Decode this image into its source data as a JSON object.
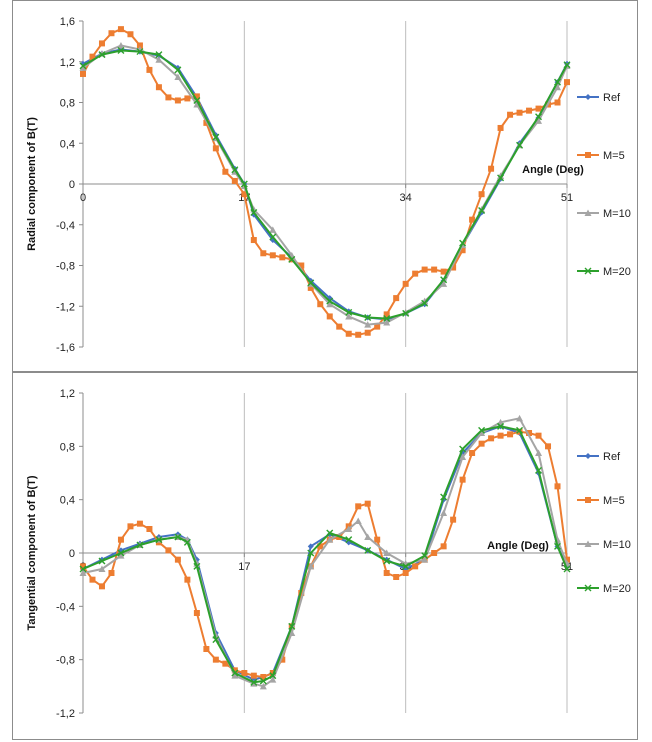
{
  "chart_data": [
    {
      "type": "line",
      "title": "",
      "xlabel": "Angle (Deg)",
      "ylabel": "Radial component of B(T)",
      "xlim": [
        0,
        51
      ],
      "ylim": [
        -1.6,
        1.6
      ],
      "x_ticks": [
        "0",
        "17",
        "34",
        "51"
      ],
      "y_ticks": [
        "1,6",
        "1,2",
        "0,8",
        "0,4",
        "0",
        "-0,4",
        "-0,8",
        "-1,2",
        "-1,6"
      ],
      "grid": "vertical",
      "legend_position": "right",
      "series": [
        {
          "name": "Ref",
          "color": "#4472c4",
          "marker": "diamond",
          "x": [
            0,
            2,
            4,
            6,
            8,
            10,
            12,
            14,
            16,
            17,
            18,
            20,
            22,
            24,
            26,
            28,
            30,
            32,
            34,
            36,
            38,
            40,
            42,
            44,
            46,
            48,
            50,
            51
          ],
          "y": [
            1.18,
            1.28,
            1.32,
            1.3,
            1.26,
            1.14,
            0.85,
            0.48,
            0.15,
            0.0,
            -0.3,
            -0.55,
            -0.72,
            -0.95,
            -1.12,
            -1.25,
            -1.31,
            -1.33,
            -1.27,
            -1.18,
            -0.95,
            -0.6,
            -0.28,
            0.05,
            0.4,
            0.65,
            1.0,
            1.18
          ]
        },
        {
          "name": "M=5",
          "color": "#ed7d31",
          "marker": "square",
          "x": [
            0,
            1,
            2,
            3,
            4,
            5,
            6,
            7,
            8,
            9,
            10,
            11,
            12,
            13,
            14,
            15,
            16,
            17,
            18,
            19,
            20,
            21,
            22,
            23,
            24,
            25,
            26,
            27,
            28,
            29,
            30,
            31,
            32,
            33,
            34,
            35,
            36,
            37,
            38,
            39,
            40,
            41,
            42,
            43,
            44,
            45,
            46,
            47,
            48,
            49,
            50,
            51
          ],
          "y": [
            1.08,
            1.25,
            1.38,
            1.48,
            1.52,
            1.47,
            1.36,
            1.12,
            0.95,
            0.85,
            0.82,
            0.84,
            0.86,
            0.6,
            0.35,
            0.12,
            0.03,
            -0.1,
            -0.55,
            -0.68,
            -0.7,
            -0.72,
            -0.74,
            -0.8,
            -1.02,
            -1.18,
            -1.3,
            -1.4,
            -1.47,
            -1.48,
            -1.46,
            -1.4,
            -1.28,
            -1.12,
            -0.98,
            -0.88,
            -0.84,
            -0.84,
            -0.86,
            -0.82,
            -0.65,
            -0.35,
            -0.1,
            0.15,
            0.55,
            0.68,
            0.7,
            0.72,
            0.74,
            0.78,
            0.8,
            1.0
          ]
        },
        {
          "name": "M=10",
          "color": "#a5a5a5",
          "marker": "triangle",
          "x": [
            0,
            2,
            4,
            6,
            8,
            10,
            12,
            14,
            16,
            17,
            18,
            20,
            22,
            24,
            26,
            28,
            30,
            32,
            34,
            36,
            38,
            40,
            42,
            44,
            46,
            48,
            50,
            51
          ],
          "y": [
            1.14,
            1.28,
            1.36,
            1.32,
            1.22,
            1.05,
            0.78,
            0.45,
            0.12,
            -0.02,
            -0.25,
            -0.45,
            -0.7,
            -0.98,
            -1.18,
            -1.3,
            -1.38,
            -1.36,
            -1.26,
            -1.15,
            -0.98,
            -0.6,
            -0.25,
            0.08,
            0.38,
            0.62,
            0.95,
            1.16
          ]
        },
        {
          "name": "M=20",
          "color": "#2ca02c",
          "marker": "x",
          "x": [
            0,
            2,
            4,
            6,
            8,
            10,
            12,
            14,
            16,
            17,
            18,
            20,
            22,
            24,
            26,
            28,
            30,
            32,
            34,
            36,
            38,
            40,
            42,
            44,
            46,
            48,
            50,
            51
          ],
          "y": [
            1.16,
            1.27,
            1.31,
            1.3,
            1.27,
            1.12,
            0.82,
            0.46,
            0.14,
            0.0,
            -0.28,
            -0.52,
            -0.74,
            -0.97,
            -1.15,
            -1.26,
            -1.31,
            -1.32,
            -1.27,
            -1.17,
            -0.94,
            -0.58,
            -0.26,
            0.06,
            0.38,
            0.66,
            1.0,
            1.17
          ]
        }
      ]
    },
    {
      "type": "line",
      "title": "",
      "xlabel": "Angle (Deg)",
      "ylabel": "Tangential component of B(T)",
      "xlim": [
        0,
        51
      ],
      "ylim": [
        -1.2,
        1.2
      ],
      "x_ticks": [
        "0",
        "17",
        "34",
        "51"
      ],
      "y_ticks": [
        "1,2",
        "0,8",
        "0,4",
        "0",
        "-0,4",
        "-0,8",
        "-1,2"
      ],
      "grid": "vertical",
      "legend_position": "right",
      "series": [
        {
          "name": "Ref",
          "color": "#4472c4",
          "marker": "diamond",
          "x": [
            0,
            2,
            4,
            6,
            8,
            10,
            11,
            12,
            14,
            16,
            18,
            19,
            20,
            22,
            24,
            26,
            28,
            30,
            32,
            34,
            36,
            38,
            40,
            42,
            44,
            46,
            48,
            50,
            51
          ],
          "y": [
            -0.12,
            -0.05,
            0.02,
            0.07,
            0.12,
            0.14,
            0.1,
            -0.05,
            -0.6,
            -0.88,
            -0.95,
            -0.93,
            -0.9,
            -0.55,
            0.05,
            0.14,
            0.08,
            0.02,
            -0.05,
            -0.12,
            -0.05,
            0.4,
            0.75,
            0.9,
            0.95,
            0.9,
            0.6,
            0.05,
            -0.1
          ]
        },
        {
          "name": "M=5",
          "color": "#ed7d31",
          "marker": "square",
          "x": [
            0,
            1,
            2,
            3,
            4,
            5,
            6,
            7,
            8,
            9,
            10,
            11,
            12,
            13,
            14,
            15,
            16,
            17,
            18,
            19,
            20,
            21,
            22,
            23,
            24,
            25,
            26,
            27,
            28,
            29,
            30,
            31,
            32,
            33,
            34,
            35,
            36,
            37,
            38,
            39,
            40,
            41,
            42,
            43,
            44,
            45,
            46,
            47,
            48,
            49,
            50,
            51
          ],
          "y": [
            -0.1,
            -0.2,
            -0.25,
            -0.15,
            0.1,
            0.2,
            0.22,
            0.18,
            0.08,
            0.02,
            -0.05,
            -0.2,
            -0.45,
            -0.72,
            -0.8,
            -0.83,
            -0.88,
            -0.9,
            -0.92,
            -0.93,
            -0.9,
            -0.8,
            -0.55,
            -0.3,
            -0.1,
            0.05,
            0.1,
            0.12,
            0.2,
            0.35,
            0.37,
            0.1,
            -0.15,
            -0.18,
            -0.15,
            -0.1,
            -0.05,
            0.0,
            0.05,
            0.25,
            0.55,
            0.75,
            0.82,
            0.86,
            0.88,
            0.89,
            0.91,
            0.9,
            0.88,
            0.8,
            0.5,
            -0.05
          ]
        },
        {
          "name": "M=10",
          "color": "#a5a5a5",
          "marker": "triangle",
          "x": [
            0,
            2,
            4,
            6,
            8,
            10,
            11,
            12,
            14,
            16,
            18,
            19,
            20,
            22,
            24,
            26,
            28,
            29,
            30,
            32,
            34,
            36,
            38,
            40,
            42,
            44,
            46,
            48,
            50,
            51
          ],
          "y": [
            -0.15,
            -0.12,
            -0.02,
            0.06,
            0.1,
            0.12,
            0.1,
            -0.08,
            -0.62,
            -0.92,
            -0.98,
            -1.0,
            -0.95,
            -0.6,
            -0.1,
            0.1,
            0.18,
            0.24,
            0.12,
            0.0,
            -0.08,
            -0.05,
            0.3,
            0.72,
            0.9,
            0.98,
            1.01,
            0.75,
            0.1,
            -0.08
          ]
        },
        {
          "name": "M=20",
          "color": "#2ca02c",
          "marker": "x",
          "x": [
            0,
            2,
            4,
            6,
            8,
            10,
            11,
            12,
            14,
            16,
            18,
            19,
            20,
            22,
            24,
            26,
            28,
            30,
            32,
            34,
            36,
            38,
            40,
            42,
            44,
            46,
            48,
            50,
            51
          ],
          "y": [
            -0.12,
            -0.06,
            0.0,
            0.06,
            0.1,
            0.12,
            0.08,
            -0.1,
            -0.65,
            -0.9,
            -0.97,
            -0.96,
            -0.92,
            -0.55,
            0.0,
            0.15,
            0.1,
            0.02,
            -0.06,
            -0.1,
            -0.02,
            0.42,
            0.78,
            0.92,
            0.95,
            0.92,
            0.62,
            0.05,
            -0.12
          ]
        }
      ]
    }
  ]
}
